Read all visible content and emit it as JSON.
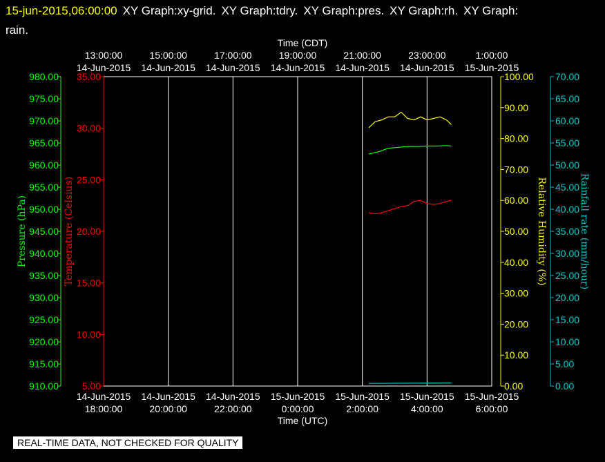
{
  "header": {
    "timestamp": "15-jun-2015,06:00:00",
    "titles": [
      "XY Graph:xy-grid.",
      "XY Graph:tdry.",
      "XY Graph:pres.",
      "XY Graph:rh.",
      "XY Graph:",
      "rain."
    ]
  },
  "notice": "REAL-TIME DATA, NOT CHECKED FOR QUALITY",
  "chart_data": {
    "type": "line",
    "grid": true,
    "top_axis": {
      "title": "Time (CDT)",
      "ticks": [
        {
          "t": 0,
          "l1": "13:00:00",
          "l2": "14-Jun-2015"
        },
        {
          "t": 2,
          "l1": "15:00:00",
          "l2": "14-Jun-2015"
        },
        {
          "t": 4,
          "l1": "17:00:00",
          "l2": "14-Jun-2015"
        },
        {
          "t": 6,
          "l1": "19:00:00",
          "l2": "14-Jun-2015"
        },
        {
          "t": 8,
          "l1": "21:00:00",
          "l2": "14-Jun-2015"
        },
        {
          "t": 10,
          "l1": "23:00:00",
          "l2": "14-Jun-2015"
        },
        {
          "t": 12,
          "l1": "1:00:00",
          "l2": "15-Jun-2015"
        }
      ]
    },
    "bottom_axis": {
      "title": "Time (UTC)",
      "ticks": [
        {
          "t": 0,
          "l1": "14-Jun-2015",
          "l2": "18:00:00"
        },
        {
          "t": 2,
          "l1": "14-Jun-2015",
          "l2": "20:00:00"
        },
        {
          "t": 4,
          "l1": "14-Jun-2015",
          "l2": "22:00:00"
        },
        {
          "t": 6,
          "l1": "15-Jun-2015",
          "l2": "0:00:00"
        },
        {
          "t": 8,
          "l1": "15-Jun-2015",
          "l2": "2:00:00"
        },
        {
          "t": 10,
          "l1": "15-Jun-2015",
          "l2": "4:00:00"
        },
        {
          "t": 12,
          "l1": "15-Jun-2015",
          "l2": "6:00:00"
        }
      ],
      "range": [
        0,
        12
      ]
    },
    "y_axes": [
      {
        "id": "pres",
        "label": "Pressure (hPa)",
        "color": "#00ff00",
        "range": [
          910,
          980
        ],
        "ticks": [
          "980.00",
          "975.00",
          "970.00",
          "965.00",
          "960.00",
          "955.00",
          "950.00",
          "945.00",
          "940.00",
          "935.00",
          "930.00",
          "925.00",
          "920.00",
          "915.00",
          "910.00"
        ]
      },
      {
        "id": "tdry",
        "label": "Temperature (Celsius)",
        "color": "#ff0000",
        "range": [
          5,
          35
        ],
        "ticks": [
          "35.00",
          "30.00",
          "25.00",
          "20.00",
          "15.00",
          "10.00",
          "5.00"
        ]
      },
      {
        "id": "rh",
        "label": "Relative Humidity (%)",
        "color": "#ffff00",
        "range": [
          0,
          100
        ],
        "ticks": [
          "100.00",
          "90.00",
          "80.00",
          "70.00",
          "60.00",
          "50.00",
          "40.00",
          "30.00",
          "20.00",
          "10.00",
          "0.00"
        ]
      },
      {
        "id": "rain",
        "label": "Rainfall rate (mm/hour)",
        "color": "#00cccc",
        "range": [
          0,
          70
        ],
        "ticks": [
          "70.00",
          "65.00",
          "60.00",
          "55.00",
          "50.00",
          "45.00",
          "40.00",
          "35.00",
          "30.00",
          "25.00",
          "20.00",
          "15.00",
          "10.00",
          "5.00",
          "0.00"
        ]
      }
    ],
    "series": [
      {
        "axis": "rh",
        "color": "#ffff00",
        "x": [
          8.2,
          8.4,
          8.6,
          8.8,
          9.0,
          9.2,
          9.4,
          9.6,
          9.8,
          10.0,
          10.2,
          10.4,
          10.6,
          10.75
        ],
        "y": [
          83.5,
          85.5,
          86,
          87,
          87,
          88.5,
          86.5,
          86,
          87,
          86,
          86.5,
          87,
          86,
          84.5
        ]
      },
      {
        "axis": "pres",
        "color": "#00ff00",
        "x": [
          8.2,
          8.5,
          8.8,
          9.1,
          9.4,
          9.7,
          10.0,
          10.3,
          10.6,
          10.75
        ],
        "y": [
          962.5,
          963,
          963.8,
          964,
          964.2,
          964.2,
          964.3,
          964.3,
          964.4,
          964.3
        ]
      },
      {
        "axis": "tdry",
        "color": "#ff0000",
        "x": [
          8.2,
          8.4,
          8.6,
          8.8,
          9.0,
          9.2,
          9.4,
          9.6,
          9.8,
          10.0,
          10.2,
          10.4,
          10.6,
          10.75
        ],
        "y": [
          21.8,
          21.7,
          21.8,
          22.0,
          22.2,
          22.4,
          22.5,
          22.9,
          23.0,
          22.7,
          22.6,
          22.7,
          22.9,
          23.0
        ]
      },
      {
        "axis": "rain",
        "color": "#00cccc",
        "x": [
          8.2,
          10.75
        ],
        "y": [
          0.6,
          0.7
        ]
      }
    ]
  }
}
